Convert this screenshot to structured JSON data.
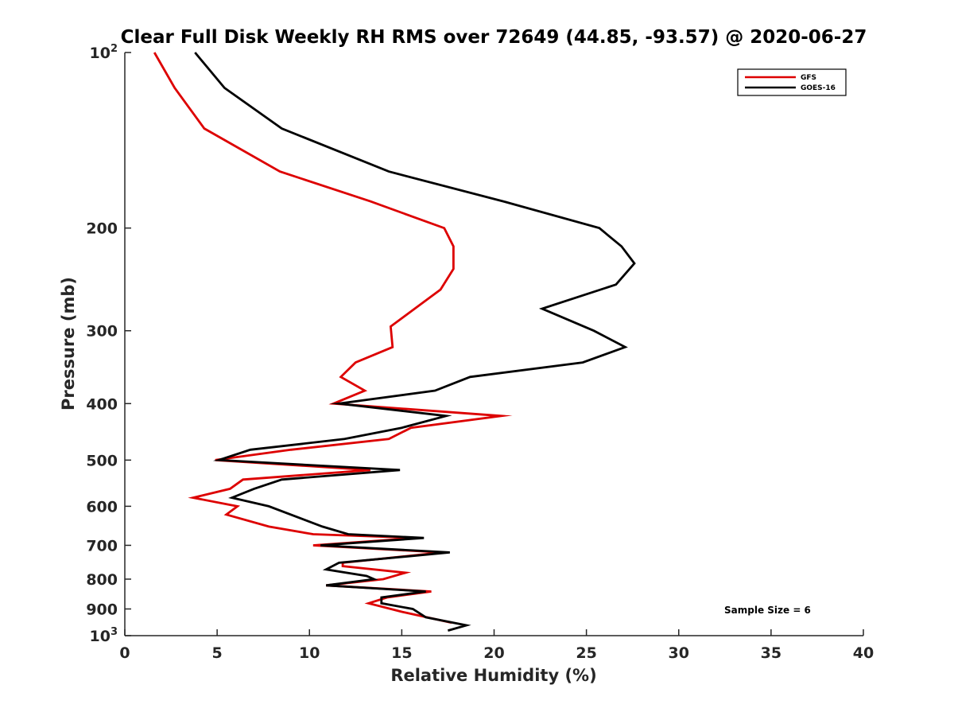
{
  "chart_data": {
    "type": "line",
    "title": "Clear Full Disk Weekly RH RMS over 72649 (44.85, -93.57) @ 2020-06-27",
    "xlabel": "Relative Humidity (%)",
    "ylabel": "Pressure (mb)",
    "xlim": [
      0,
      40
    ],
    "ylim": [
      100,
      1000
    ],
    "y_scale": "log",
    "y_reversed": true,
    "x_ticks": [
      "0",
      "5",
      "10",
      "15",
      "20",
      "25",
      "30",
      "35",
      "40"
    ],
    "y_ticks": [
      {
        "value": 100,
        "base": "10",
        "exp": "2"
      },
      {
        "value": 200,
        "label": "200"
      },
      {
        "value": 300,
        "label": "300"
      },
      {
        "value": 400,
        "label": "400"
      },
      {
        "value": 500,
        "label": "500"
      },
      {
        "value": 600,
        "label": "600"
      },
      {
        "value": 700,
        "label": "700"
      },
      {
        "value": 800,
        "label": "800"
      },
      {
        "value": 900,
        "label": "900"
      },
      {
        "value": 1000,
        "base": "10",
        "exp": "3"
      }
    ],
    "grid": false,
    "legend_position": "top-right",
    "annotation": "Sample Size = 6",
    "series": [
      {
        "name": "GFS",
        "color": "#dd0000",
        "points": [
          [
            1.6,
            100
          ],
          [
            2.7,
            115
          ],
          [
            4.3,
            135
          ],
          [
            8.4,
            160
          ],
          [
            13.3,
            180
          ],
          [
            17.3,
            200
          ],
          [
            17.8,
            215
          ],
          [
            17.8,
            235
          ],
          [
            17.1,
            255
          ],
          [
            14.4,
            295
          ],
          [
            14.5,
            320
          ],
          [
            12.5,
            340
          ],
          [
            11.7,
            360
          ],
          [
            13.0,
            380
          ],
          [
            11.3,
            400
          ],
          [
            20.4,
            420
          ],
          [
            15.5,
            440
          ],
          [
            14.3,
            460
          ],
          [
            9.0,
            480
          ],
          [
            4.9,
            500
          ],
          [
            13.3,
            520
          ],
          [
            6.4,
            540
          ],
          [
            5.7,
            560
          ],
          [
            3.7,
            580
          ],
          [
            6.1,
            600
          ],
          [
            5.5,
            620
          ],
          [
            7.8,
            650
          ],
          [
            10.2,
            670
          ],
          [
            15.8,
            680
          ],
          [
            10.2,
            700
          ],
          [
            17.2,
            720
          ],
          [
            11.8,
            750
          ],
          [
            11.8,
            760
          ],
          [
            15.2,
            780
          ],
          [
            14.0,
            800
          ],
          [
            10.9,
            820
          ],
          [
            16.6,
            840
          ],
          [
            14.2,
            860
          ],
          [
            13.2,
            880
          ],
          [
            15.0,
            910
          ],
          [
            17.7,
            950
          ]
        ]
      },
      {
        "name": "GOES-16",
        "color": "#000000",
        "points": [
          [
            3.8,
            100
          ],
          [
            5.4,
            115
          ],
          [
            8.5,
            135
          ],
          [
            14.3,
            160
          ],
          [
            20.5,
            180
          ],
          [
            25.7,
            200
          ],
          [
            26.9,
            215
          ],
          [
            27.6,
            230
          ],
          [
            26.6,
            250
          ],
          [
            22.6,
            275
          ],
          [
            25.4,
            300
          ],
          [
            27.1,
            320
          ],
          [
            24.8,
            340
          ],
          [
            18.7,
            360
          ],
          [
            16.8,
            380
          ],
          [
            11.6,
            400
          ],
          [
            17.4,
            420
          ],
          [
            15.0,
            440
          ],
          [
            11.9,
            460
          ],
          [
            6.8,
            480
          ],
          [
            5.1,
            500
          ],
          [
            14.9,
            520
          ],
          [
            8.5,
            540
          ],
          [
            7.0,
            560
          ],
          [
            5.8,
            580
          ],
          [
            7.8,
            600
          ],
          [
            10.7,
            650
          ],
          [
            12.1,
            670
          ],
          [
            16.2,
            680
          ],
          [
            10.6,
            700
          ],
          [
            17.6,
            720
          ],
          [
            11.6,
            750
          ],
          [
            10.9,
            770
          ],
          [
            13.1,
            790
          ],
          [
            13.5,
            800
          ],
          [
            10.9,
            820
          ],
          [
            16.3,
            840
          ],
          [
            13.9,
            860
          ],
          [
            13.9,
            880
          ],
          [
            15.6,
            900
          ],
          [
            16.3,
            930
          ],
          [
            18.5,
            960
          ],
          [
            17.5,
            980
          ]
        ]
      }
    ]
  }
}
